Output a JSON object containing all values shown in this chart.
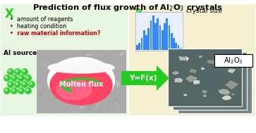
{
  "bg_color": "#ffffff",
  "left_panel_color": "#e8f5e0",
  "right_panel_color": "#f5f0d0",
  "x_label_color": "#22cc22",
  "y_label_color": "#22cc22",
  "arrow_color": "#22cc22",
  "bullet1": "amount of reagents",
  "bullet2": "heating condition",
  "bullet3": "raw material information?",
  "bullet3_color": "#cc0000",
  "al_source_label": "Al source",
  "molten_flux_label": "Molten flux",
  "crystal_size_label": "crystal size",
  "yf_label": "Y=F(x)",
  "hist_bars": [
    2,
    3,
    5,
    8,
    6,
    9,
    12,
    14,
    11,
    13,
    10,
    8,
    11,
    13,
    10,
    7,
    5,
    3,
    2,
    1
  ],
  "hist_color": "#3388ff",
  "hist_bg": "#e8f0ff",
  "sem_colors": [
    "#556655",
    "#667766",
    "#778877"
  ],
  "sem_particle_color": "#ccddcc",
  "sem_edge_color": "#334433"
}
